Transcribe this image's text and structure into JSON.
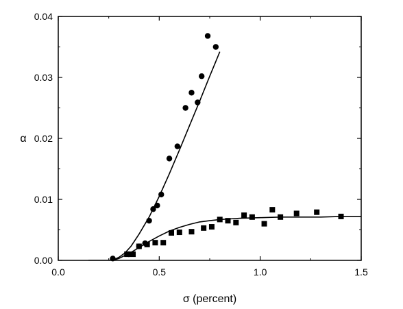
{
  "chart_data": {
    "type": "scatter",
    "title": "",
    "xlabel": "σ (percent)",
    "ylabel": "α",
    "xlim": [
      0.0,
      1.5
    ],
    "ylim": [
      0.0,
      0.04
    ],
    "xticks": [
      0.0,
      0.5,
      1.0,
      1.5
    ],
    "xtick_labels": [
      "0.0",
      "0.5",
      "1.0",
      "1.5"
    ],
    "yticks": [
      0.0,
      0.01,
      0.02,
      0.03,
      0.04
    ],
    "ytick_labels": [
      "0.00",
      "0.01",
      "0.02",
      "0.03",
      "0.04"
    ],
    "grid": false,
    "legend": "none",
    "series": [
      {
        "marker": "circle",
        "color": "#000000",
        "x": [
          0.27,
          0.35,
          0.4,
          0.43,
          0.45,
          0.47,
          0.49,
          0.51,
          0.55,
          0.59,
          0.63,
          0.66,
          0.69,
          0.71,
          0.74,
          0.78
        ],
        "y": [
          0.0003,
          0.001,
          0.0023,
          0.0028,
          0.0065,
          0.0084,
          0.009,
          0.0108,
          0.0167,
          0.0187,
          0.025,
          0.0275,
          0.0259,
          0.0302,
          0.0368,
          0.035
        ],
        "fit_curve": {
          "x": [
            0.15,
            0.2,
            0.25,
            0.28,
            0.3,
            0.33,
            0.36,
            0.4,
            0.45,
            0.5,
            0.55,
            0.6,
            0.65,
            0.7,
            0.75,
            0.78,
            0.8
          ],
          "y": [
            0.0,
            0.0,
            0.0,
            0.0002,
            0.0005,
            0.0012,
            0.0023,
            0.0043,
            0.0071,
            0.0105,
            0.0142,
            0.0181,
            0.0221,
            0.0261,
            0.0302,
            0.0326,
            0.0342
          ]
        }
      },
      {
        "marker": "square",
        "color": "#000000",
        "x": [
          0.34,
          0.37,
          0.4,
          0.44,
          0.48,
          0.52,
          0.56,
          0.6,
          0.66,
          0.72,
          0.76,
          0.8,
          0.84,
          0.88,
          0.92,
          0.96,
          1.02,
          1.06,
          1.1,
          1.18,
          1.28,
          1.4
        ],
        "y": [
          0.001,
          0.001,
          0.0023,
          0.0026,
          0.0029,
          0.0029,
          0.0045,
          0.0046,
          0.0047,
          0.0053,
          0.0055,
          0.0067,
          0.0065,
          0.0062,
          0.0074,
          0.0071,
          0.006,
          0.0083,
          0.0071,
          0.0077,
          0.0079,
          0.0072
        ],
        "fit_curve": {
          "x": [
            0.15,
            0.2,
            0.25,
            0.28,
            0.3,
            0.33,
            0.36,
            0.4,
            0.45,
            0.5,
            0.55,
            0.6,
            0.65,
            0.7,
            0.75,
            0.8,
            0.85,
            0.9,
            1.0,
            1.1,
            1.2,
            1.3,
            1.4,
            1.5
          ],
          "y": [
            0.0,
            0.0,
            0.0,
            0.0001,
            0.0003,
            0.0008,
            0.0013,
            0.0021,
            0.0031,
            0.004,
            0.0048,
            0.0054,
            0.0059,
            0.0063,
            0.0065,
            0.0067,
            0.0068,
            0.0069,
            0.007,
            0.0071,
            0.0071,
            0.0071,
            0.0072,
            0.0072
          ]
        }
      }
    ]
  }
}
